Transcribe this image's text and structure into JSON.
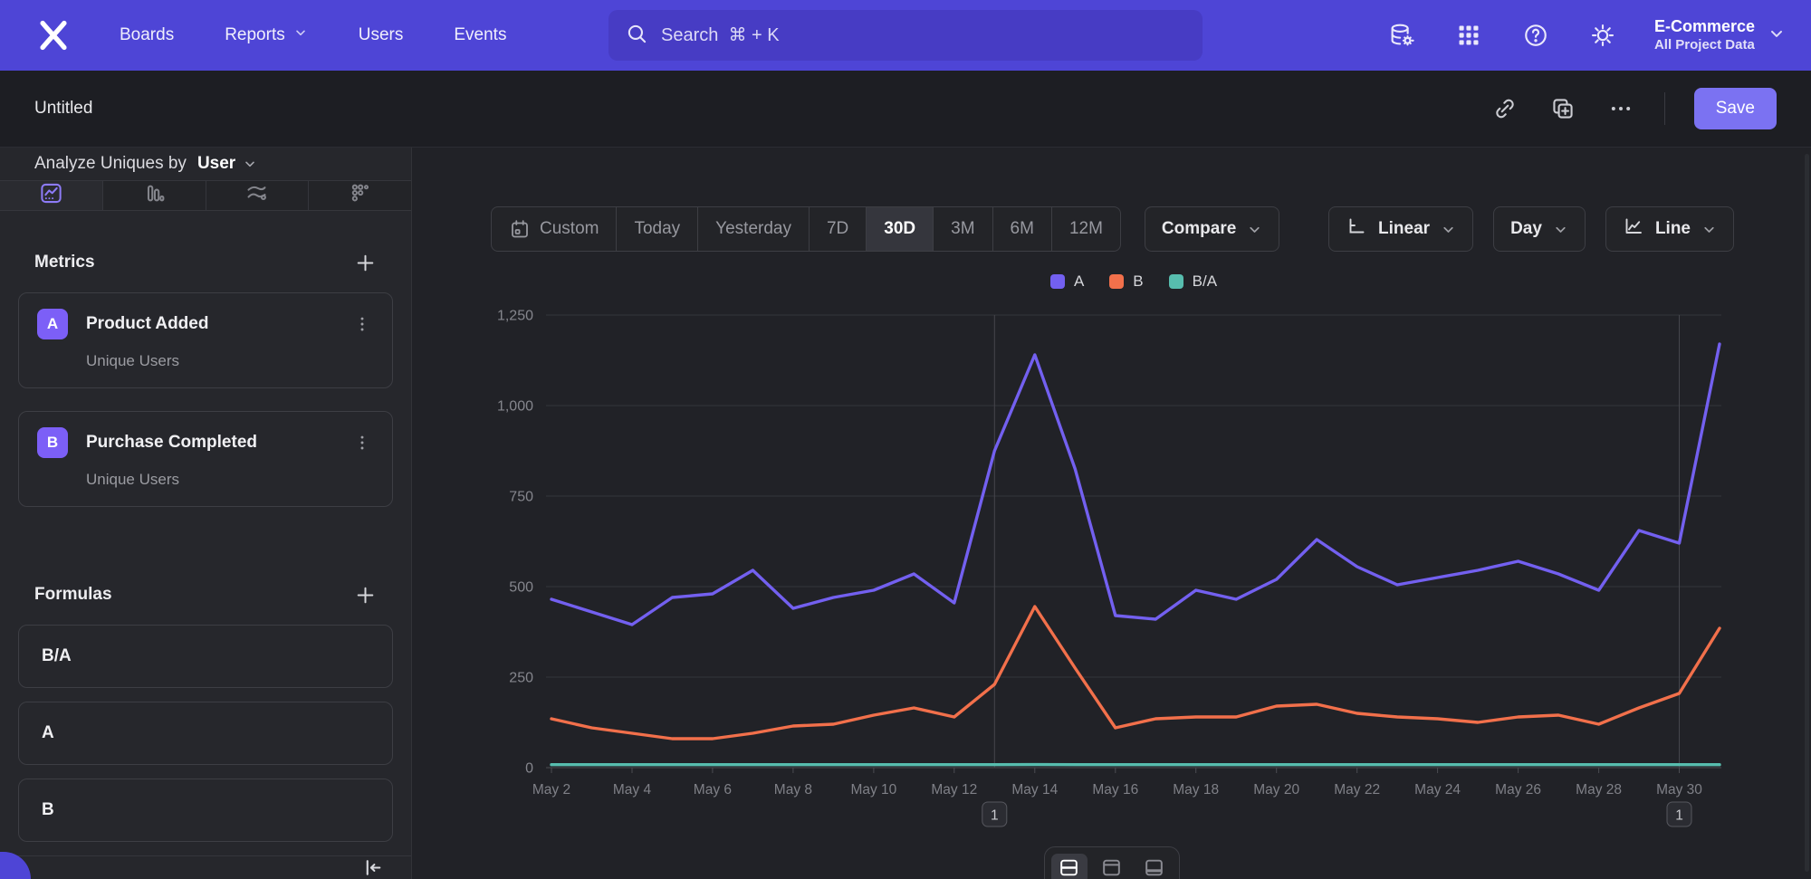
{
  "nav": {
    "menu": [
      "Boards",
      "Reports",
      "Users",
      "Events"
    ],
    "menu_with_dropdown": "Reports",
    "search_placeholder": "Search  ⌘ + K",
    "right_icons": [
      "data-management-icon",
      "apps-grid-icon",
      "help-icon",
      "settings-icon"
    ],
    "project_name": "E-Commerce",
    "project_scope": "All Project Data"
  },
  "report_bar": {
    "title": "Untitled",
    "icons": [
      "copy-link-icon",
      "duplicate-icon",
      "more-icon"
    ],
    "save_label": "Save"
  },
  "sidebar": {
    "analyze_prefix": "Analyze Uniques by",
    "analyze_value": "User",
    "view_tabs": [
      "insights",
      "bar",
      "flows",
      "retention"
    ],
    "active_view_tab": "insights",
    "metrics_title": "Metrics",
    "metrics": [
      {
        "letter": "A",
        "name": "Product Added",
        "measure": "Unique Users"
      },
      {
        "letter": "B",
        "name": "Purchase Completed",
        "measure": "Unique Users"
      }
    ],
    "formulas_title": "Formulas",
    "formulas": [
      "B/A",
      "A",
      "B"
    ]
  },
  "controls": {
    "date_ranges": [
      "Custom",
      "Today",
      "Yesterday",
      "7D",
      "30D",
      "3M",
      "6M",
      "12M"
    ],
    "active_range": "30D",
    "compare_label": "Compare",
    "scale_label": "Linear",
    "granularity_label": "Day",
    "chart_type_label": "Line"
  },
  "view_toggles": {
    "options": [
      "split-view",
      "chart-view",
      "table-view"
    ],
    "active": "split-view"
  },
  "colors": {
    "nav_purple": "#4e45d6",
    "accent_purple": "#7b72f2",
    "badge_purple": "#7c5ff7",
    "series_a": "#7360f0",
    "series_b": "#f2704b",
    "series_ba": "#57bdae"
  },
  "chart_data": {
    "type": "line",
    "title": "",
    "xlabel": "",
    "ylabel": "",
    "x": [
      "May 2",
      "May 3",
      "May 4",
      "May 5",
      "May 6",
      "May 7",
      "May 8",
      "May 9",
      "May 10",
      "May 11",
      "May 12",
      "May 13",
      "May 14",
      "May 15",
      "May 16",
      "May 17",
      "May 18",
      "May 19",
      "May 20",
      "May 21",
      "May 22",
      "May 23",
      "May 24",
      "May 25",
      "May 26",
      "May 27",
      "May 28",
      "May 29",
      "May 30",
      "May 31"
    ],
    "x_tick_labels": [
      "May 2",
      "May 4",
      "May 6",
      "May 8",
      "May 10",
      "May 12",
      "May 14",
      "May 16",
      "May 18",
      "May 20",
      "May 22",
      "May 24",
      "May 26",
      "May 28",
      "May 30"
    ],
    "series": [
      {
        "name": "A",
        "color": "#7360f0",
        "values": [
          465,
          430,
          395,
          470,
          480,
          545,
          440,
          470,
          490,
          535,
          455,
          875,
          1140,
          825,
          420,
          410,
          490,
          465,
          520,
          630,
          555,
          505,
          525,
          545,
          570,
          535,
          490,
          655,
          620,
          1170
        ]
      },
      {
        "name": "B",
        "color": "#f2704b",
        "values": [
          135,
          110,
          95,
          80,
          80,
          95,
          115,
          120,
          145,
          165,
          140,
          230,
          445,
          275,
          110,
          135,
          140,
          140,
          170,
          175,
          150,
          140,
          135,
          125,
          140,
          145,
          120,
          165,
          205,
          385
        ]
      },
      {
        "name": "B/A",
        "color": "#57bdae",
        "values": [
          0.29,
          0.26,
          0.24,
          0.17,
          0.17,
          0.17,
          0.26,
          0.26,
          0.3,
          0.31,
          0.31,
          0.26,
          0.39,
          0.33,
          0.26,
          0.33,
          0.29,
          0.3,
          0.33,
          0.28,
          0.27,
          0.28,
          0.26,
          0.23,
          0.25,
          0.27,
          0.24,
          0.25,
          0.33,
          0.33
        ]
      }
    ],
    "ylim": [
      0,
      1250
    ],
    "yticks": [
      0,
      250,
      500,
      750,
      1000,
      1250
    ],
    "grid": "horizontal",
    "legend_position": "top-center",
    "annotations": [
      {
        "label": "1",
        "x": "May 13",
        "index": 11
      },
      {
        "label": "1",
        "x": "May 30",
        "index": 28
      }
    ]
  }
}
